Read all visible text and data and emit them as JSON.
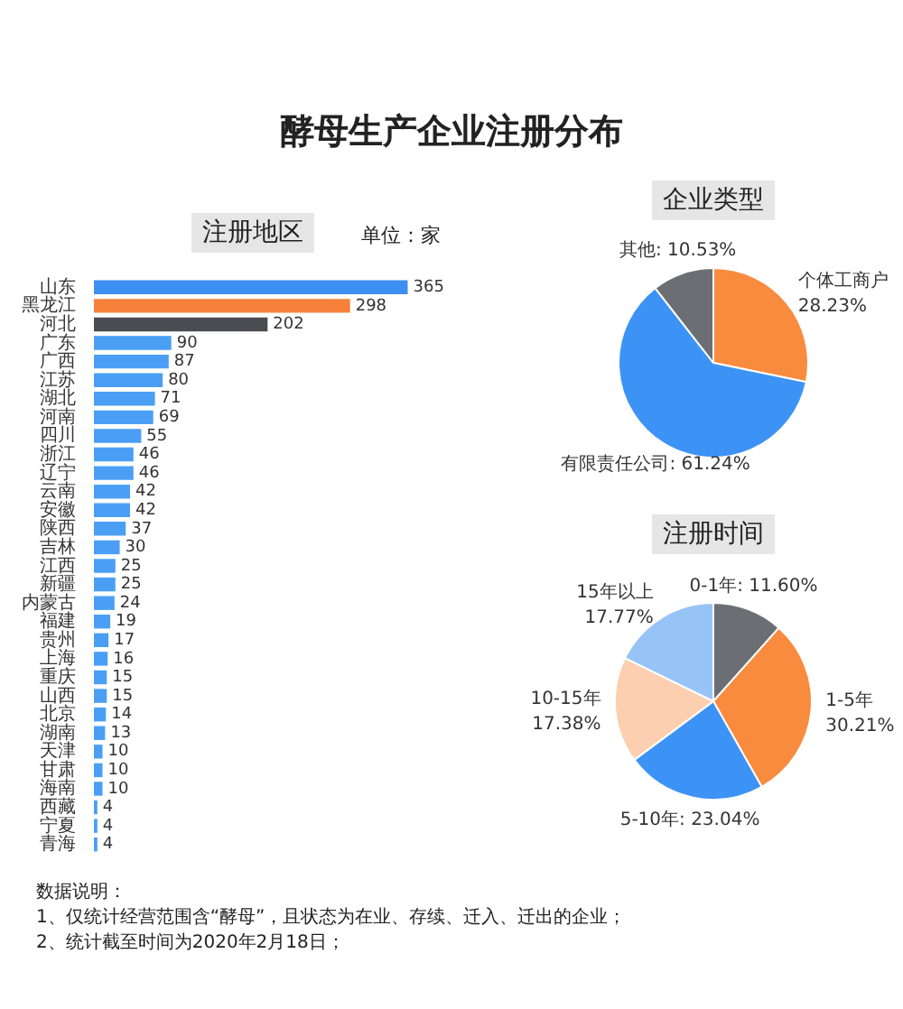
{
  "chart_data": [
    {
      "type": "bar",
      "title": "酵母生产企业注册分布",
      "subtitle": "注册地区",
      "categories": [
        "山东",
        "黑龙江",
        "河北",
        "广东",
        "广西",
        "江苏",
        "湖北",
        "河南",
        "四川",
        "浙江",
        "辽宁",
        "云南",
        "安徽",
        "陕西",
        "吉林",
        "江西",
        "新疆",
        "内蒙古",
        "福建",
        "贵州",
        "上海",
        "重庆",
        "山西",
        "北京",
        "湖南",
        "天津",
        "甘肃",
        "海南",
        "西藏",
        "宁夏",
        "青海"
      ],
      "values": [
        365,
        298,
        202,
        90,
        87,
        80,
        71,
        69,
        55,
        46,
        46,
        42,
        42,
        37,
        30,
        25,
        25,
        24,
        19,
        17,
        16,
        15,
        15,
        14,
        13,
        10,
        10,
        10,
        4,
        4,
        4
      ],
      "colors": [
        "#3d8ff2",
        "#f7813a",
        "#4a4c52",
        "#4a9ff5",
        "#4a9ff5",
        "#4a9ff5",
        "#4a9ff5",
        "#4a9ff5",
        "#4a9ff5",
        "#4a9ff5",
        "#4a9ff5",
        "#4a9ff5",
        "#4a9ff5",
        "#4a9ff5",
        "#4a9ff5",
        "#4a9ff5",
        "#4a9ff5",
        "#4a9ff5",
        "#4a9ff5",
        "#4a9ff5",
        "#4a9ff5",
        "#4a9ff5",
        "#4a9ff5",
        "#4a9ff5",
        "#4a9ff5",
        "#4a9ff5",
        "#4a9ff5",
        "#4a9ff5",
        "#4a9ff5",
        "#4a9ff5",
        "#4a9ff5"
      ],
      "data_labels": true,
      "tick_labels": "y",
      "orientation": "horizontal",
      "annotations": [
        "单位：家",
        "数据说明：",
        "1、仅统计经营范围含“酵母”，且状态为在业、存续、迁入、迁出的企业；",
        "2、统计截至时间为2020年2月18日；"
      ]
    },
    {
      "type": "pie",
      "title": "企业类型",
      "categories": [
        "个体工商户",
        "有限责任公司",
        "其他"
      ],
      "values": [
        28.23,
        61.24,
        10.53
      ],
      "value_labels": [
        "28.23%",
        "61.24%",
        "10.53%"
      ],
      "colors": [
        "#f98b3f",
        "#3d93f5",
        "#6b6e73"
      ]
    },
    {
      "type": "pie",
      "title": "注册时间",
      "categories": [
        "0-1年",
        "1-5年",
        "5-10年",
        "10-15年",
        "15年以上"
      ],
      "values": [
        11.6,
        30.21,
        23.04,
        17.38,
        17.77
      ],
      "value_labels": [
        "11.60%",
        "30.21%",
        "23.04%",
        "17.38%",
        "17.77%"
      ],
      "colors": [
        "#6b6e73",
        "#f98b3f",
        "#3d93f5",
        "#fbcfb0",
        "#97c4f7"
      ]
    }
  ]
}
